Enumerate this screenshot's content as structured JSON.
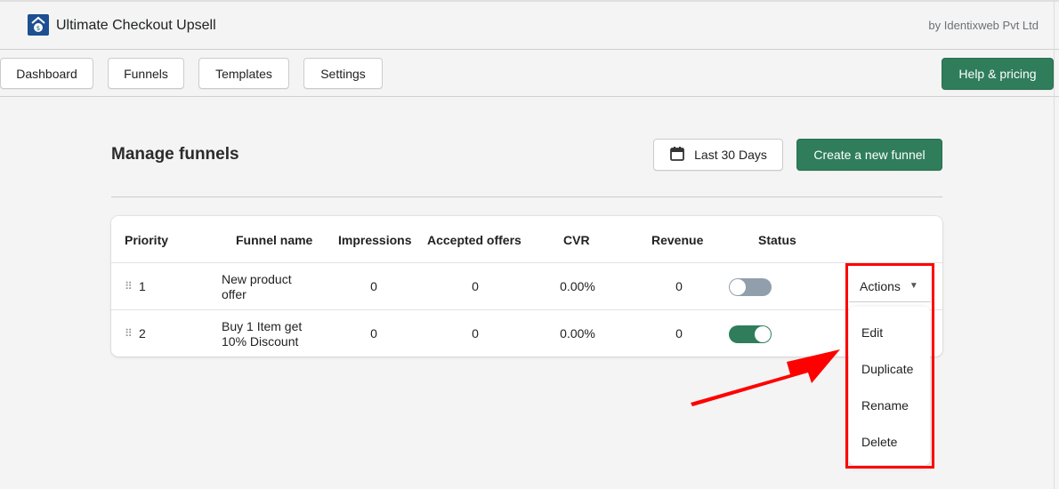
{
  "header": {
    "app_title": "Ultimate Checkout Upsell",
    "vendor": "by Identixweb Pvt Ltd"
  },
  "nav": {
    "tabs": [
      "Dashboard",
      "Funnels",
      "Templates",
      "Settings"
    ],
    "help_label": "Help & pricing"
  },
  "page": {
    "title": "Manage funnels",
    "date_range": "Last 30 Days",
    "create_label": "Create a new funnel"
  },
  "table": {
    "headers": [
      "Priority",
      "Funnel name",
      "Impressions",
      "Accepted offers",
      "CVR",
      "Revenue",
      "Status"
    ],
    "rows": [
      {
        "priority": "1",
        "name_line1": "New product",
        "name_line2": "offer",
        "impressions": "0",
        "accepted": "0",
        "cvr": "0.00%",
        "revenue": "0",
        "status_on": false
      },
      {
        "priority": "2",
        "name_line1": "Buy 1 Item get",
        "name_line2": "10% Discount",
        "impressions": "0",
        "accepted": "0",
        "cvr": "0.00%",
        "revenue": "0",
        "status_on": true
      }
    ]
  },
  "actions": {
    "label": "Actions",
    "menu": [
      "Edit",
      "Duplicate",
      "Rename",
      "Delete"
    ]
  },
  "colors": {
    "primary": "#2f7d5b",
    "annotation": "#ff0000",
    "toggle_off": "#919eab"
  }
}
